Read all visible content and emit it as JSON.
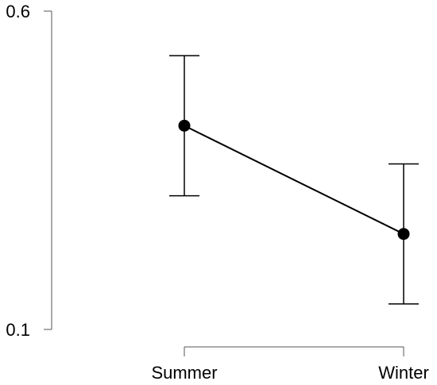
{
  "chart_data": {
    "type": "line",
    "categories": [
      "Summer",
      "Winter"
    ],
    "values": [
      0.42,
      0.25
    ],
    "errors": [
      0.11,
      0.11
    ],
    "color": "#000000",
    "ylim": [
      0.1,
      0.6
    ],
    "yticks": [
      0.1,
      0.6
    ],
    "grid": false
  }
}
